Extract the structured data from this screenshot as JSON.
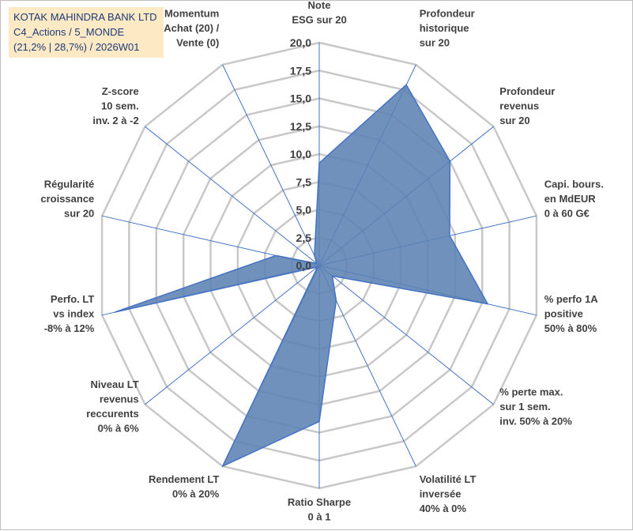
{
  "title_box": {
    "line1": "KOTAK MAHINDRA BANK LTD",
    "line2": "C4_Actions / 5_MONDE",
    "line3": "(21,2% | 28,7%) / 2026W01"
  },
  "colors": {
    "fill": "#5b82b3",
    "stroke": "#4472c4",
    "grid": "#c8c8c8",
    "spoke": "#4472c4",
    "title_bg": "#fde9c4",
    "title_text": "#1f3a78"
  },
  "chart_data": {
    "type": "radar",
    "max": 20,
    "tick_values": [
      0,
      2.5,
      5,
      7.5,
      10,
      12.5,
      15,
      17.5,
      20
    ],
    "tick_labels": [
      "0,0",
      "2,5",
      "5,0",
      "7,5",
      "10,0",
      "12,5",
      "15,0",
      "17,5",
      "20,0"
    ],
    "axes": [
      [
        "Note",
        "ESG sur 20"
      ],
      [
        "Profondeur",
        "historique",
        "sur 20"
      ],
      [
        "Profondeur",
        "revenus",
        "sur 20"
      ],
      [
        "Capi. bours.",
        "en MdEUR",
        "0 à 60 G€"
      ],
      [
        "% perfo 1A",
        "positive",
        "50% à 80%"
      ],
      [
        "% perte max.",
        "sur 1 sem.",
        "inv. 50% à 20%"
      ],
      [
        "Volatilité LT",
        "inversée",
        "40% à 0%"
      ],
      [
        "Ratio Sharpe",
        "0 à 1"
      ],
      [
        "Rendement LT",
        "0% à 20%"
      ],
      [
        "Niveau LT",
        "revenus",
        "reccurents",
        "0% à 6%"
      ],
      [
        "Perfo. LT",
        "vs index",
        "-8% à 12%"
      ],
      [
        "Régularité",
        "croissance",
        "sur 20"
      ],
      [
        "Z-score",
        "10 sem.",
        "inv. 2 à -2"
      ],
      [
        "Momentum",
        "Achat (20) /",
        "Vente (0)"
      ]
    ],
    "series": [
      {
        "name": "KOTAK MAHINDRA BANK LTD",
        "values": [
          9.2,
          18.0,
          15.0,
          12.0,
          15.5,
          1.5,
          3.5,
          14.0,
          20.0,
          0.2,
          18.8,
          4.0,
          0.3,
          1.0
        ]
      }
    ]
  }
}
